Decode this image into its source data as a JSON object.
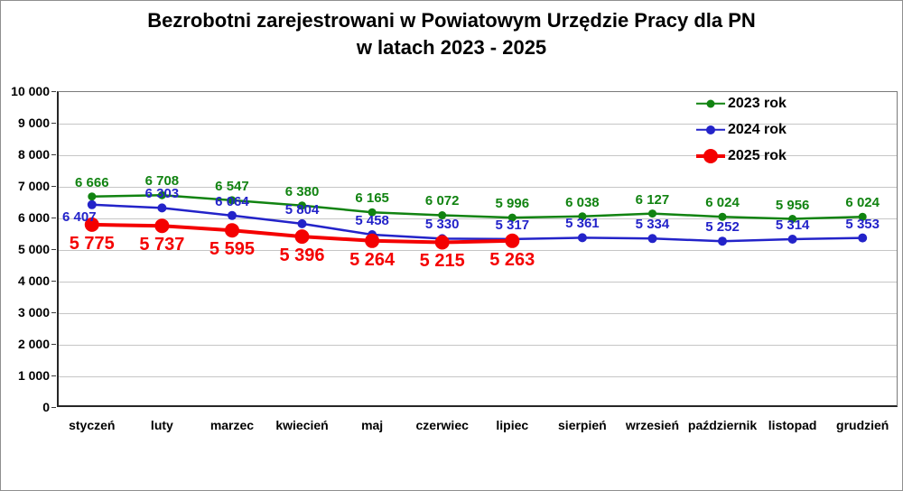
{
  "title": {
    "line1": "Bezrobotni zarejestrowani w Powiatowym Urzędzie Pracy dla PN",
    "line2": "w latach 2023 - 2025"
  },
  "chart_data": {
    "type": "line",
    "categories": [
      "styczeń",
      "luty",
      "marzec",
      "kwiecień",
      "maj",
      "czerwiec",
      "lipiec",
      "sierpień",
      "wrzesień",
      "październik",
      "listopad",
      "grudzień"
    ],
    "series": [
      {
        "name": "2023 rok",
        "color": "#118311",
        "values": [
          6666,
          6708,
          6547,
          6380,
          6165,
          6072,
          5996,
          6038,
          6127,
          6024,
          5956,
          6024
        ],
        "labels": [
          "6 666",
          "6 708",
          "6 547",
          "6 380",
          "6 165",
          "6 072",
          "5 996",
          "6 038",
          "6 127",
          "6 024",
          "5 956",
          "6 024"
        ],
        "label_side": "above",
        "label_overrides": []
      },
      {
        "name": "2024 rok",
        "color": "#2323c9",
        "values": [
          6407,
          6303,
          6064,
          5804,
          5458,
          5330,
          5317,
          5361,
          5334,
          5252,
          5314,
          5353
        ],
        "labels": [
          "6 407",
          "6 303",
          "6 064",
          "5 804",
          "5 458",
          "5 330",
          "5 317",
          "5 361",
          "5 334",
          "5 252",
          "5 314",
          "5 353"
        ],
        "label_side": "above",
        "label_overrides": [
          {
            "index": 0,
            "dx": -14,
            "dy": 14
          }
        ]
      },
      {
        "name": "2025 rok",
        "color": "#f40000",
        "values": [
          5775,
          5737,
          5595,
          5396,
          5264,
          5215,
          5263
        ],
        "labels": [
          "5 775",
          "5 737",
          "5 595",
          "5 396",
          "5 264",
          "5 215",
          "5 263"
        ],
        "label_side": "below",
        "label_overrides": []
      }
    ],
    "ylim": [
      0,
      10000
    ],
    "ytick_step": 1000,
    "ytick_labels": [
      "0",
      "1 000",
      "2 000",
      "3 000",
      "4 000",
      "5 000",
      "6 000",
      "7 000",
      "8 000",
      "9 000",
      "10 000"
    ],
    "grid": true,
    "legend_position": "top-right",
    "xlabel": "",
    "ylabel": ""
  }
}
